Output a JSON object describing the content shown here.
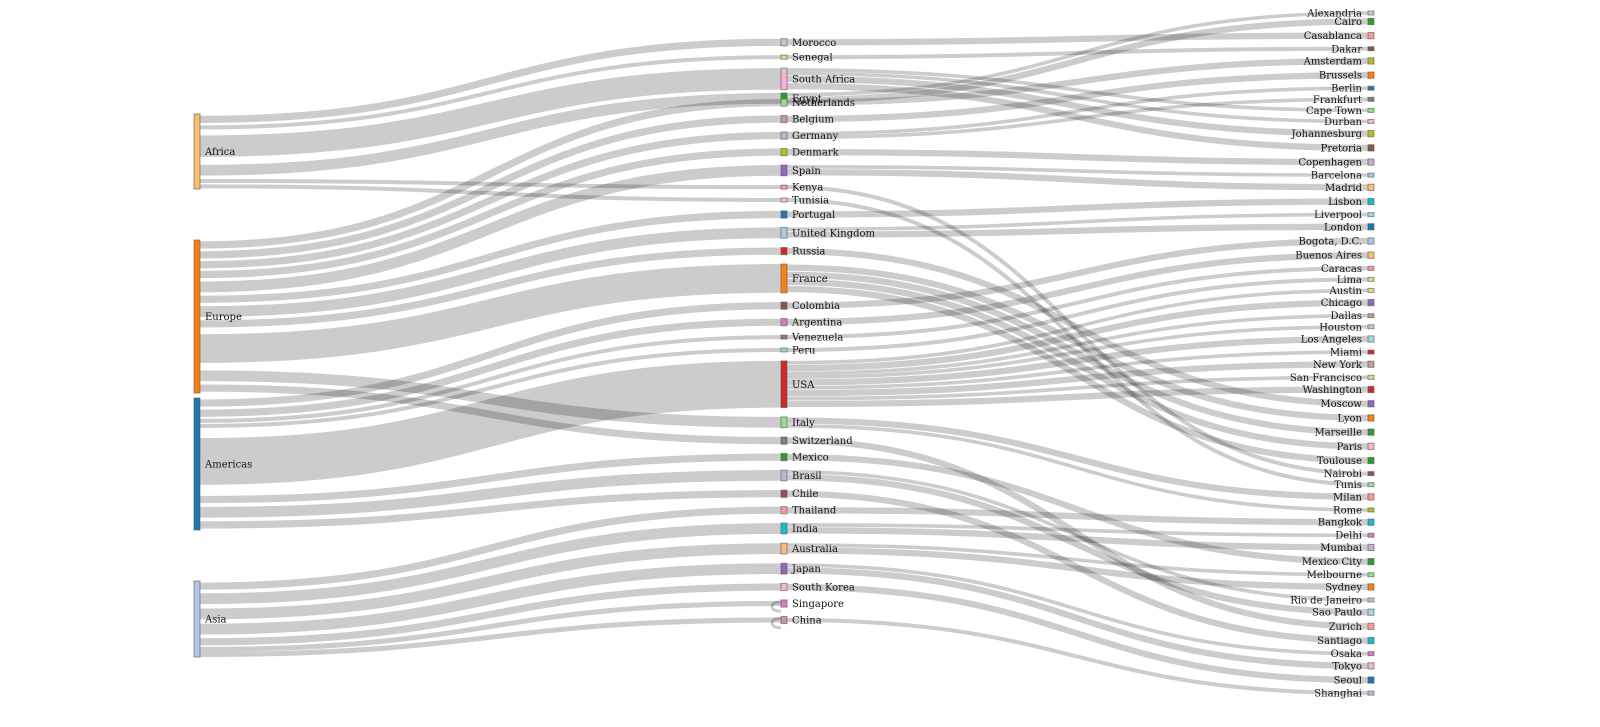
{
  "diagram": {
    "type": "sankey",
    "columns": [
      {
        "label_side": "right",
        "nodes": [
          {
            "id": "africa",
            "name": "Africa",
            "color": "#fdbf6f"
          },
          {
            "id": "europe",
            "name": "Europe",
            "color": "#ff7f0e"
          },
          {
            "id": "americas",
            "name": "Americas",
            "color": "#1f77b4"
          },
          {
            "id": "asia",
            "name": "Asia",
            "color": "#aec7e8"
          }
        ]
      },
      {
        "label_side": "right",
        "nodes": [
          {
            "id": "egypt",
            "name": "Egypt",
            "color": "#2ca02c"
          },
          {
            "id": "morocco",
            "name": "Morocco",
            "color": "#c7c7c7"
          },
          {
            "id": "senegal",
            "name": "Senegal",
            "color": "#dbdb8d"
          },
          {
            "id": "south_africa",
            "name": "South Africa",
            "color": "#f7b6d2"
          },
          {
            "id": "netherlands",
            "name": "Netherlands",
            "color": "#98df8a"
          },
          {
            "id": "belgium",
            "name": "Belgium",
            "color": "#c49c94"
          },
          {
            "id": "germany",
            "name": "Germany",
            "color": "#c5b0d5"
          },
          {
            "id": "denmark",
            "name": "Denmark",
            "color": "#bcbd22"
          },
          {
            "id": "spain",
            "name": "Spain",
            "color": "#9467bd"
          },
          {
            "id": "kenya",
            "name": "Kenya",
            "color": "#ff9896"
          },
          {
            "id": "tunisia",
            "name": "Tunisia",
            "color": "#f7b6d2"
          },
          {
            "id": "portugal",
            "name": "Portugal",
            "color": "#1f77b4"
          },
          {
            "id": "united_kingdom",
            "name": "United Kingdom",
            "color": "#aec7e8"
          },
          {
            "id": "russia",
            "name": "Russia",
            "color": "#d62728"
          },
          {
            "id": "france",
            "name": "France",
            "color": "#ff7f0e"
          },
          {
            "id": "colombia",
            "name": "Colombia",
            "color": "#8c564b"
          },
          {
            "id": "argentina",
            "name": "Argentina",
            "color": "#e377c2"
          },
          {
            "id": "venezuela",
            "name": "Venezuela",
            "color": "#7f7f7f"
          },
          {
            "id": "peru",
            "name": "Peru",
            "color": "#9edae5"
          },
          {
            "id": "usa",
            "name": "USA",
            "color": "#d62728"
          },
          {
            "id": "italy",
            "name": "Italy",
            "color": "#98df8a"
          },
          {
            "id": "switzerland",
            "name": "Switzerland",
            "color": "#7f7f7f"
          },
          {
            "id": "mexico",
            "name": "Mexico",
            "color": "#2ca02c"
          },
          {
            "id": "brasil",
            "name": "Brasil",
            "color": "#c5b0d5"
          },
          {
            "id": "chile",
            "name": "Chile",
            "color": "#8c564b"
          },
          {
            "id": "thailand",
            "name": "Thailand",
            "color": "#ff9896"
          },
          {
            "id": "india",
            "name": "India",
            "color": "#17becf"
          },
          {
            "id": "australia",
            "name": "Australia",
            "color": "#ffbb78"
          },
          {
            "id": "japan",
            "name": "Japan",
            "color": "#9467bd"
          },
          {
            "id": "south_korea",
            "name": "South Korea",
            "color": "#f7b6d2"
          },
          {
            "id": "singapore",
            "name": "Singapore",
            "color": "#e377c2"
          },
          {
            "id": "china",
            "name": "China",
            "color": "#c49c94"
          }
        ]
      },
      {
        "label_side": "left",
        "nodes": [
          {
            "id": "alexandria",
            "name": "Alexandria",
            "color": "#c7c7c7"
          },
          {
            "id": "cairo",
            "name": "Cairo",
            "color": "#2ca02c"
          },
          {
            "id": "casablanca",
            "name": "Casablanca",
            "color": "#ff9896"
          },
          {
            "id": "dakar",
            "name": "Dakar",
            "color": "#8c564b"
          },
          {
            "id": "amsterdam",
            "name": "Amsterdam",
            "color": "#bcbd22"
          },
          {
            "id": "brussels",
            "name": "Brussels",
            "color": "#ff7f0e"
          },
          {
            "id": "berlin",
            "name": "Berlin",
            "color": "#1f77b4"
          },
          {
            "id": "frankfurt",
            "name": "Frankfurt",
            "color": "#7f7f7f"
          },
          {
            "id": "cape_town",
            "name": "Cape Town",
            "color": "#98df8a"
          },
          {
            "id": "durban",
            "name": "Durban",
            "color": "#f7b6d2"
          },
          {
            "id": "johannesburg",
            "name": "Johannesburg",
            "color": "#bcbd22"
          },
          {
            "id": "pretoria",
            "name": "Pretoria",
            "color": "#8c564b"
          },
          {
            "id": "copenhagen",
            "name": "Copenhagen",
            "color": "#c5b0d5"
          },
          {
            "id": "barcelona",
            "name": "Barcelona",
            "color": "#aec7e8"
          },
          {
            "id": "madrid",
            "name": "Madrid",
            "color": "#ffbb78"
          },
          {
            "id": "lisbon",
            "name": "Lisbon",
            "color": "#17becf"
          },
          {
            "id": "liverpool",
            "name": "Liverpool",
            "color": "#9edae5"
          },
          {
            "id": "london",
            "name": "London",
            "color": "#1f77b4"
          },
          {
            "id": "bogota",
            "name": "Bogota, D.C.",
            "color": "#aec7e8"
          },
          {
            "id": "buenos_aires",
            "name": "Buenos Aires",
            "color": "#ffbb78"
          },
          {
            "id": "caracas",
            "name": "Caracas",
            "color": "#ff9896"
          },
          {
            "id": "lima",
            "name": "Lima",
            "color": "#dbdb8d"
          },
          {
            "id": "austin",
            "name": "Austin",
            "color": "#dbdb8d"
          },
          {
            "id": "chicago",
            "name": "Chicago",
            "color": "#9467bd"
          },
          {
            "id": "dallas",
            "name": "Dallas",
            "color": "#c49c94"
          },
          {
            "id": "houston",
            "name": "Houston",
            "color": "#c7c7c7"
          },
          {
            "id": "los_angeles",
            "name": "Los Angeles",
            "color": "#9edae5"
          },
          {
            "id": "miami",
            "name": "Miami",
            "color": "#d62728"
          },
          {
            "id": "new_york",
            "name": "New York",
            "color": "#c49c94"
          },
          {
            "id": "san_francisco",
            "name": "San Francisco",
            "color": "#dbdb8d"
          },
          {
            "id": "washington",
            "name": "Washington",
            "color": "#d62728"
          },
          {
            "id": "moscow",
            "name": "Moscow",
            "color": "#9467bd"
          },
          {
            "id": "lyon",
            "name": "Lyon",
            "color": "#ff7f0e"
          },
          {
            "id": "marseille",
            "name": "Marseille",
            "color": "#2ca02c"
          },
          {
            "id": "paris",
            "name": "Paris",
            "color": "#f7b6d2"
          },
          {
            "id": "toulouse",
            "name": "Toulouse",
            "color": "#2ca02c"
          },
          {
            "id": "nairobi",
            "name": "Nairobi",
            "color": "#8c564b"
          },
          {
            "id": "tunis",
            "name": "Tunis",
            "color": "#98df8a"
          },
          {
            "id": "milan",
            "name": "Milan",
            "color": "#ff9896"
          },
          {
            "id": "rome",
            "name": "Rome",
            "color": "#bcbd22"
          },
          {
            "id": "bangkok",
            "name": "Bangkok",
            "color": "#17becf"
          },
          {
            "id": "delhi",
            "name": "Delhi",
            "color": "#e377c2"
          },
          {
            "id": "mumbai",
            "name": "Mumbai",
            "color": "#c5b0d5"
          },
          {
            "id": "mexico_city",
            "name": "Mexico City",
            "color": "#2ca02c"
          },
          {
            "id": "melbourne",
            "name": "Melbourne",
            "color": "#98df8a"
          },
          {
            "id": "sydney",
            "name": "Sydney",
            "color": "#ff7f0e"
          },
          {
            "id": "rio_de_janeiro",
            "name": "Rio de Janeiro",
            "color": "#c7c7c7"
          },
          {
            "id": "sao_paulo",
            "name": "Sao Paulo",
            "color": "#9edae5"
          },
          {
            "id": "zurich",
            "name": "Zurich",
            "color": "#ff9896"
          },
          {
            "id": "santiago",
            "name": "Santiago",
            "color": "#17becf"
          },
          {
            "id": "osaka",
            "name": "Osaka",
            "color": "#e377c2"
          },
          {
            "id": "tokyo",
            "name": "Tokyo",
            "color": "#f7b6d2"
          },
          {
            "id": "seoul",
            "name": "Seoul",
            "color": "#1f77b4"
          },
          {
            "id": "shanghai",
            "name": "Shanghai",
            "color": "#aec7e8"
          }
        ]
      }
    ],
    "links": [
      {
        "source": "africa",
        "target": "egypt",
        "value": 3
      },
      {
        "source": "africa",
        "target": "morocco",
        "value": 2
      },
      {
        "source": "africa",
        "target": "senegal",
        "value": 1
      },
      {
        "source": "africa",
        "target": "south_africa",
        "value": 6
      },
      {
        "source": "africa",
        "target": "kenya",
        "value": 1
      },
      {
        "source": "africa",
        "target": "tunisia",
        "value": 1
      },
      {
        "source": "europe",
        "target": "netherlands",
        "value": 2
      },
      {
        "source": "europe",
        "target": "belgium",
        "value": 2
      },
      {
        "source": "europe",
        "target": "germany",
        "value": 2
      },
      {
        "source": "europe",
        "target": "denmark",
        "value": 2
      },
      {
        "source": "europe",
        "target": "spain",
        "value": 3
      },
      {
        "source": "europe",
        "target": "portugal",
        "value": 2
      },
      {
        "source": "europe",
        "target": "united_kingdom",
        "value": 3
      },
      {
        "source": "europe",
        "target": "russia",
        "value": 2
      },
      {
        "source": "europe",
        "target": "france",
        "value": 8
      },
      {
        "source": "europe",
        "target": "italy",
        "value": 3
      },
      {
        "source": "europe",
        "target": "switzerland",
        "value": 2
      },
      {
        "source": "americas",
        "target": "colombia",
        "value": 2
      },
      {
        "source": "americas",
        "target": "argentina",
        "value": 2
      },
      {
        "source": "americas",
        "target": "venezuela",
        "value": 1
      },
      {
        "source": "americas",
        "target": "peru",
        "value": 1
      },
      {
        "source": "americas",
        "target": "usa",
        "value": 13
      },
      {
        "source": "americas",
        "target": "mexico",
        "value": 2
      },
      {
        "source": "americas",
        "target": "brasil",
        "value": 3
      },
      {
        "source": "americas",
        "target": "chile",
        "value": 2
      },
      {
        "source": "asia",
        "target": "thailand",
        "value": 2
      },
      {
        "source": "asia",
        "target": "india",
        "value": 3
      },
      {
        "source": "asia",
        "target": "australia",
        "value": 3
      },
      {
        "source": "asia",
        "target": "japan",
        "value": 3
      },
      {
        "source": "asia",
        "target": "south_korea",
        "value": 2
      },
      {
        "source": "asia",
        "target": "singapore",
        "value": 1
      },
      {
        "source": "asia",
        "target": "china",
        "value": 1
      },
      {
        "source": "egypt",
        "target": "alexandria",
        "value": 1
      },
      {
        "source": "egypt",
        "target": "cairo",
        "value": 2
      },
      {
        "source": "morocco",
        "target": "casablanca",
        "value": 2
      },
      {
        "source": "senegal",
        "target": "dakar",
        "value": 1
      },
      {
        "source": "south_africa",
        "target": "cape_town",
        "value": 1
      },
      {
        "source": "south_africa",
        "target": "durban",
        "value": 1
      },
      {
        "source": "south_africa",
        "target": "johannesburg",
        "value": 2
      },
      {
        "source": "south_africa",
        "target": "pretoria",
        "value": 2
      },
      {
        "source": "netherlands",
        "target": "amsterdam",
        "value": 2
      },
      {
        "source": "belgium",
        "target": "brussels",
        "value": 2
      },
      {
        "source": "germany",
        "target": "berlin",
        "value": 1
      },
      {
        "source": "germany",
        "target": "frankfurt",
        "value": 1
      },
      {
        "source": "denmark",
        "target": "copenhagen",
        "value": 2
      },
      {
        "source": "spain",
        "target": "barcelona",
        "value": 1
      },
      {
        "source": "spain",
        "target": "madrid",
        "value": 2
      },
      {
        "source": "kenya",
        "target": "nairobi",
        "value": 1
      },
      {
        "source": "tunisia",
        "target": "tunis",
        "value": 1
      },
      {
        "source": "portugal",
        "target": "lisbon",
        "value": 2
      },
      {
        "source": "united_kingdom",
        "target": "liverpool",
        "value": 1
      },
      {
        "source": "united_kingdom",
        "target": "london",
        "value": 2
      },
      {
        "source": "russia",
        "target": "moscow",
        "value": 2
      },
      {
        "source": "france",
        "target": "lyon",
        "value": 2
      },
      {
        "source": "france",
        "target": "marseille",
        "value": 2
      },
      {
        "source": "france",
        "target": "paris",
        "value": 2
      },
      {
        "source": "france",
        "target": "toulouse",
        "value": 2
      },
      {
        "source": "colombia",
        "target": "bogota",
        "value": 2
      },
      {
        "source": "argentina",
        "target": "buenos_aires",
        "value": 2
      },
      {
        "source": "venezuela",
        "target": "caracas",
        "value": 1
      },
      {
        "source": "peru",
        "target": "lima",
        "value": 1
      },
      {
        "source": "usa",
        "target": "austin",
        "value": 1
      },
      {
        "source": "usa",
        "target": "chicago",
        "value": 2
      },
      {
        "source": "usa",
        "target": "dallas",
        "value": 1
      },
      {
        "source": "usa",
        "target": "houston",
        "value": 1
      },
      {
        "source": "usa",
        "target": "los_angeles",
        "value": 2
      },
      {
        "source": "usa",
        "target": "miami",
        "value": 1
      },
      {
        "source": "usa",
        "target": "new_york",
        "value": 2
      },
      {
        "source": "usa",
        "target": "san_francisco",
        "value": 1
      },
      {
        "source": "usa",
        "target": "washington",
        "value": 2
      },
      {
        "source": "italy",
        "target": "milan",
        "value": 2
      },
      {
        "source": "italy",
        "target": "rome",
        "value": 1
      },
      {
        "source": "switzerland",
        "target": "zurich",
        "value": 2
      },
      {
        "source": "mexico",
        "target": "mexico_city",
        "value": 2
      },
      {
        "source": "brasil",
        "target": "rio_de_janeiro",
        "value": 1
      },
      {
        "source": "brasil",
        "target": "sao_paulo",
        "value": 2
      },
      {
        "source": "chile",
        "target": "santiago",
        "value": 2
      },
      {
        "source": "thailand",
        "target": "bangkok",
        "value": 2
      },
      {
        "source": "india",
        "target": "delhi",
        "value": 1
      },
      {
        "source": "india",
        "target": "mumbai",
        "value": 2
      },
      {
        "source": "australia",
        "target": "melbourne",
        "value": 1
      },
      {
        "source": "australia",
        "target": "sydney",
        "value": 2
      },
      {
        "source": "japan",
        "target": "osaka",
        "value": 1
      },
      {
        "source": "japan",
        "target": "tokyo",
        "value": 2
      },
      {
        "source": "south_korea",
        "target": "seoul",
        "value": 2
      },
      {
        "source": "singapore",
        "target": "singapore",
        "value": 1
      },
      {
        "source": "china",
        "target": "shanghai",
        "value": 1
      },
      {
        "source": "china",
        "target": "china",
        "value": 1
      }
    ]
  }
}
